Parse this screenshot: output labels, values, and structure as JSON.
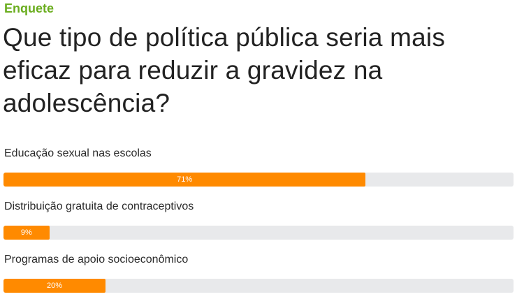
{
  "poll": {
    "kicker": "Enquete",
    "question": "Que tipo de política pública seria mais eficaz para reduzir a gravidez na adolescência?",
    "options": [
      {
        "label": "Educação sexual nas escolas",
        "percent": 71,
        "percent_label": "71%"
      },
      {
        "label": "Distribuição gratuita de contraceptivos",
        "percent": 9,
        "percent_label": "9%"
      },
      {
        "label": "Programas de apoio socioeconômico",
        "percent": 20,
        "percent_label": "20%"
      }
    ]
  },
  "colors": {
    "kicker": "#6aad1e",
    "bar_fill": "#ff8a00",
    "bar_track": "#e8e9eb",
    "text": "#222222"
  }
}
